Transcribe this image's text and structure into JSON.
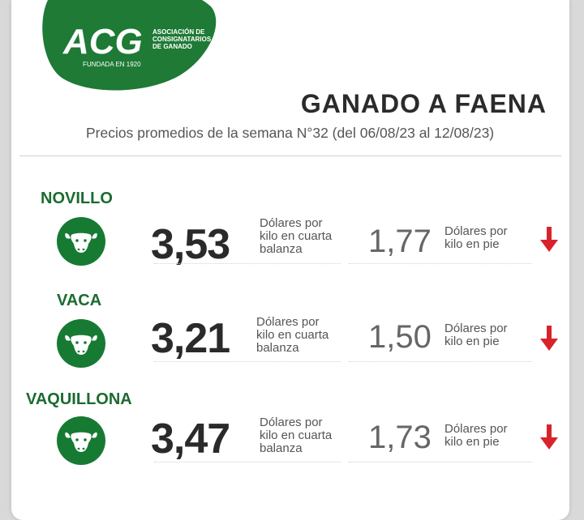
{
  "logo": {
    "letters": "ACG",
    "org_line1": "ASOCIACIÓN DE",
    "org_line2": "CONSIGNATARIOS",
    "org_line3": "DE GANADO",
    "founded": "FUNDADA EN 1920",
    "color": "#1e7a35"
  },
  "header": {
    "title": "GANADO A FAENA",
    "subtitle": "Precios promedios de la semana N°32 (del 06/08/23 al 12/08/23)"
  },
  "colors": {
    "accent": "#177a33",
    "down_arrow": "#d9232a"
  },
  "categories": [
    {
      "name": "NOVILLO",
      "icon": "cow-head-icon",
      "price_cuarta": "3,53",
      "unit_cuarta_l1": "Dólares por",
      "unit_cuarta_l2": "kilo en cuarta",
      "unit_cuarta_l3": "balanza",
      "price_pie": "1,77",
      "unit_pie_l1": "Dólares por",
      "unit_pie_l2": "kilo en pie",
      "trend": "down"
    },
    {
      "name": "VACA",
      "icon": "cow-head-icon",
      "price_cuarta": "3,21",
      "unit_cuarta_l1": "Dólares por",
      "unit_cuarta_l2": "kilo en cuarta",
      "unit_cuarta_l3": "balanza",
      "price_pie": "1,50",
      "unit_pie_l1": "Dólares por",
      "unit_pie_l2": "kilo en pie",
      "trend": "down"
    },
    {
      "name": "VAQUILLONA",
      "icon": "cow-head-icon",
      "price_cuarta": "3,47",
      "unit_cuarta_l1": "Dólares por",
      "unit_cuarta_l2": "kilo en cuarta",
      "unit_cuarta_l3": "balanza",
      "price_pie": "1,73",
      "unit_pie_l1": "Dólares por",
      "unit_pie_l2": "kilo en pie",
      "trend": "down"
    }
  ]
}
